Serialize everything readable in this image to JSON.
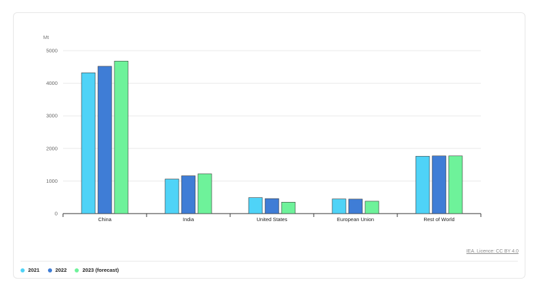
{
  "chart_data": {
    "type": "bar",
    "ylabel": "Mt",
    "ylim": [
      0,
      5000
    ],
    "yticks": [
      0,
      1000,
      2000,
      3000,
      4000,
      5000
    ],
    "grid": true,
    "legend_position": "bottom-left",
    "categories": [
      "China",
      "India",
      "United States",
      "European Union",
      "Rest of World"
    ],
    "series": [
      {
        "name": "2021",
        "color": "#4fd3f7",
        "values": [
          4320,
          1060,
          490,
          450,
          1760
        ]
      },
      {
        "name": "2022",
        "color": "#3f7dd6",
        "values": [
          4520,
          1160,
          460,
          445,
          1770
        ]
      },
      {
        "name": "2023 (forecast)",
        "color": "#6ef29a",
        "values": [
          4680,
          1220,
          350,
          380,
          1770
        ]
      }
    ]
  },
  "credit": "IEA. Licence: CC BY 4.0"
}
